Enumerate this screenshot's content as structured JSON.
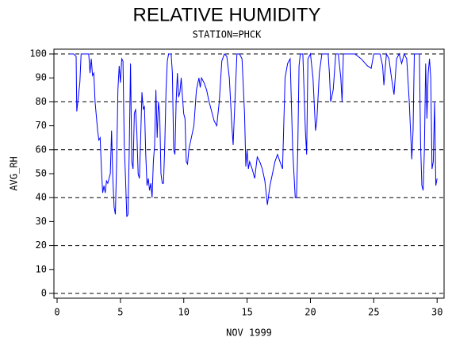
{
  "chart_data": {
    "type": "line",
    "title": "RELATIVE HUMIDITY",
    "subtitle": "STATION=PHCK",
    "x_label": "NOV 1999",
    "y_label": "AVG_RH",
    "xlim": [
      -0.25,
      30.55
    ],
    "xticks": [
      0,
      5,
      10,
      15,
      20,
      25,
      30
    ],
    "ylim": [
      -2,
      102
    ],
    "yticks": [
      0,
      10,
      20,
      30,
      40,
      50,
      60,
      70,
      80,
      90,
      100
    ],
    "grid": true,
    "x": [
      1.0,
      1.3,
      1.5,
      1.55,
      1.7,
      1.8,
      1.9,
      2.2,
      2.5,
      2.6,
      2.7,
      2.8,
      2.9,
      3.0,
      3.2,
      3.3,
      3.4,
      3.5,
      3.6,
      3.7,
      3.8,
      3.9,
      4.0,
      4.1,
      4.2,
      4.3,
      4.4,
      4.5,
      4.6,
      4.7,
      4.8,
      4.9,
      5.0,
      5.1,
      5.2,
      5.3,
      5.4,
      5.5,
      5.6,
      5.7,
      5.8,
      5.9,
      6.0,
      6.1,
      6.2,
      6.3,
      6.4,
      6.5,
      6.6,
      6.7,
      6.8,
      6.9,
      7.0,
      7.1,
      7.2,
      7.3,
      7.4,
      7.5,
      7.6,
      7.7,
      7.8,
      7.9,
      8.0,
      8.1,
      8.2,
      8.3,
      8.4,
      8.5,
      8.6,
      8.7,
      8.8,
      9.0,
      9.1,
      9.2,
      9.3,
      9.4,
      9.5,
      9.6,
      9.7,
      9.8,
      9.9,
      10.0,
      10.1,
      10.2,
      10.3,
      10.4,
      10.6,
      10.8,
      11.0,
      11.2,
      11.3,
      11.4,
      11.6,
      11.8,
      12.0,
      12.2,
      12.4,
      12.6,
      12.8,
      13.0,
      13.2,
      13.4,
      13.6,
      13.8,
      13.9,
      14.0,
      14.2,
      14.4,
      14.6,
      14.8,
      14.9,
      15.0,
      15.1,
      15.2,
      15.4,
      15.5,
      15.6,
      15.8,
      16.0,
      16.2,
      16.4,
      16.6,
      16.8,
      17.0,
      17.2,
      17.4,
      17.6,
      17.8,
      18.0,
      18.2,
      18.4,
      18.6,
      18.8,
      18.9,
      19.0,
      19.1,
      19.2,
      19.4,
      19.6,
      19.7,
      19.8,
      20.0,
      20.2,
      20.4,
      20.5,
      20.7,
      20.9,
      21.1,
      21.4,
      21.5,
      21.6,
      21.8,
      22.0,
      22.2,
      22.4,
      22.5,
      22.6,
      23.0,
      23.5,
      24.0,
      24.5,
      24.8,
      25.0,
      25.5,
      25.7,
      25.8,
      26.0,
      26.2,
      26.4,
      26.6,
      26.8,
      27.0,
      27.2,
      27.4,
      27.6,
      27.8,
      28.0,
      28.1,
      28.2,
      28.4,
      28.6,
      28.7,
      28.8,
      28.9,
      29.0,
      29.1,
      29.2,
      29.3,
      29.4,
      29.5,
      29.6,
      29.7,
      29.8,
      29.9,
      30.0
    ],
    "series": [
      {
        "color": "#0000ff",
        "values": [
          100,
          100,
          99,
          76,
          83,
          88,
          100,
          100,
          100,
          92,
          98,
          91,
          92,
          80,
          68,
          64,
          65,
          52,
          42,
          45,
          42,
          47,
          46,
          48,
          50,
          68,
          48,
          36,
          33,
          55,
          85,
          95,
          88,
          98,
          97,
          62,
          48,
          32,
          33,
          60,
          96,
          55,
          52,
          75,
          77,
          67,
          50,
          48,
          65,
          84,
          77,
          78,
          58,
          45,
          48,
          43,
          46,
          40,
          55,
          62,
          85,
          65,
          80,
          75,
          50,
          46,
          46,
          62,
          85,
          97,
          100,
          100,
          92,
          60,
          58,
          80,
          92,
          82,
          84,
          90,
          82,
          75,
          73,
          55,
          54,
          60,
          65,
          70,
          85,
          90,
          86,
          90,
          88,
          85,
          80,
          76,
          72,
          70,
          80,
          97,
          100,
          99,
          90,
          70,
          62,
          75,
          100,
          100,
          98,
          75,
          53,
          60,
          52,
          55,
          52,
          50,
          48,
          57,
          55,
          52,
          47,
          37,
          45,
          50,
          55,
          58,
          55,
          52,
          90,
          96,
          98,
          60,
          40,
          40,
          60,
          95,
          100,
          100,
          68,
          58,
          98,
          100,
          90,
          68,
          72,
          92,
          100,
          100,
          100,
          92,
          80,
          85,
          100,
          100,
          90,
          80,
          100,
          100,
          100,
          98,
          95,
          94,
          100,
          100,
          95,
          87,
          100,
          98,
          90,
          83,
          98,
          100,
          96,
          100,
          98,
          80,
          56,
          68,
          100,
          100,
          100,
          62,
          45,
          43,
          60,
          96,
          73,
          92,
          98,
          90,
          52,
          55,
          80,
          45,
          48
        ]
      }
    ]
  }
}
